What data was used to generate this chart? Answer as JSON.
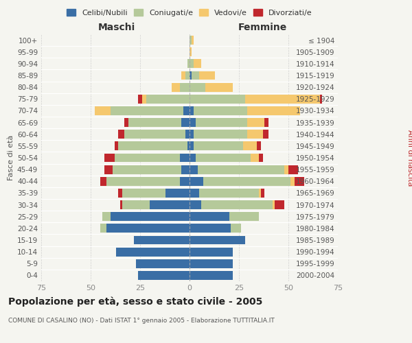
{
  "age_groups": [
    "0-4",
    "5-9",
    "10-14",
    "15-19",
    "20-24",
    "25-29",
    "30-34",
    "35-39",
    "40-44",
    "45-49",
    "50-54",
    "55-59",
    "60-64",
    "65-69",
    "70-74",
    "75-79",
    "80-84",
    "85-89",
    "90-94",
    "95-99",
    "100+"
  ],
  "birth_years": [
    "2000-2004",
    "1995-1999",
    "1990-1994",
    "1985-1989",
    "1980-1984",
    "1975-1979",
    "1970-1974",
    "1965-1969",
    "1960-1964",
    "1955-1959",
    "1950-1954",
    "1945-1949",
    "1940-1944",
    "1935-1939",
    "1930-1934",
    "1925-1929",
    "1920-1924",
    "1915-1919",
    "1910-1914",
    "1905-1909",
    "≤ 1904"
  ],
  "male": {
    "celibe": [
      26,
      27,
      37,
      28,
      42,
      40,
      20,
      12,
      5,
      4,
      5,
      1,
      2,
      4,
      3,
      0,
      0,
      0,
      0,
      0,
      0
    ],
    "coniugato": [
      0,
      0,
      0,
      0,
      3,
      4,
      14,
      22,
      37,
      35,
      33,
      35,
      31,
      27,
      37,
      22,
      5,
      2,
      1,
      0,
      0
    ],
    "vedovo": [
      0,
      0,
      0,
      0,
      0,
      0,
      0,
      0,
      0,
      0,
      0,
      0,
      0,
      0,
      8,
      2,
      4,
      2,
      0,
      0,
      0
    ],
    "divorziato": [
      0,
      0,
      0,
      0,
      0,
      0,
      1,
      2,
      3,
      4,
      5,
      2,
      3,
      2,
      0,
      2,
      0,
      0,
      0,
      0,
      0
    ]
  },
  "female": {
    "nubile": [
      22,
      22,
      22,
      28,
      21,
      20,
      6,
      5,
      7,
      4,
      3,
      2,
      2,
      3,
      2,
      0,
      0,
      1,
      0,
      0,
      0
    ],
    "coniugata": [
      0,
      0,
      0,
      0,
      5,
      15,
      36,
      30,
      44,
      44,
      28,
      25,
      27,
      26,
      27,
      28,
      8,
      4,
      2,
      0,
      1
    ],
    "vedova": [
      0,
      0,
      0,
      0,
      0,
      0,
      1,
      1,
      2,
      2,
      4,
      7,
      8,
      9,
      27,
      38,
      14,
      8,
      4,
      1,
      1
    ],
    "divorziata": [
      0,
      0,
      0,
      0,
      0,
      0,
      5,
      2,
      5,
      5,
      2,
      2,
      3,
      2,
      0,
      1,
      0,
      0,
      0,
      0,
      0
    ]
  },
  "colors": {
    "celibe": "#3a6ea5",
    "coniugato": "#b5c99a",
    "vedovo": "#f5c86e",
    "divorziato": "#c0272d"
  },
  "xlim": 75,
  "title": "Popolazione per età, sesso e stato civile - 2005",
  "subtitle": "COMUNE DI CASALINO (NO) - Dati ISTAT 1° gennaio 2005 - Elaborazione TUTTITALIA.IT",
  "ylabel_left": "Fasce di età",
  "ylabel_right": "Anni di nascita",
  "xlabel_male": "Maschi",
  "xlabel_female": "Femmine",
  "legend_labels": [
    "Celibi/Nubili",
    "Coniugati/e",
    "Vedovi/e",
    "Divorziati/e"
  ],
  "bg_color": "#f5f5f0",
  "plot_bg": "#f5f5f0",
  "grid_color": "#cccccc",
  "tick_color": "#888888",
  "label_color": "#555555"
}
